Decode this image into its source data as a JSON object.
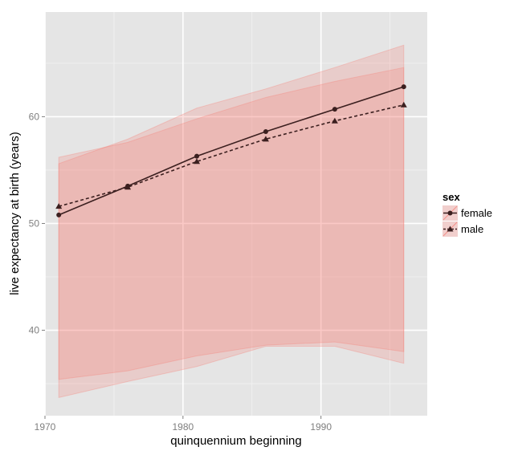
{
  "chart_data": {
    "type": "line",
    "title": "",
    "xlabel": "quinquennium beginning",
    "ylabel": "live expectancy at birth (years)",
    "xlim": [
      1970,
      1997.7
    ],
    "ylim": [
      32,
      69.8
    ],
    "x_ticks": [
      1970,
      1980,
      1990
    ],
    "x_tick_labels": [
      "1970",
      "1980",
      "1990"
    ],
    "y_ticks": [
      40,
      50,
      60
    ],
    "y_tick_labels": [
      "40",
      "50",
      "60"
    ],
    "grid": true,
    "legend": {
      "title": "sex",
      "position": "right"
    },
    "x": [
      1971,
      1976,
      1981,
      1986,
      1991,
      1996
    ],
    "series": [
      {
        "name": "female",
        "values": [
          50.8,
          53.5,
          56.3,
          58.6,
          60.7,
          62.8
        ],
        "lower": [
          33.7,
          35.2,
          36.6,
          38.5,
          38.5,
          36.9
        ],
        "upper": [
          55.6,
          57.9,
          60.8,
          62.6,
          64.6,
          66.7
        ],
        "line_style": "solid",
        "marker": "circle"
      },
      {
        "name": "male",
        "values": [
          51.6,
          53.4,
          55.8,
          57.9,
          59.6,
          61.1
        ],
        "lower": [
          35.4,
          36.2,
          37.6,
          38.6,
          38.9,
          38.0
        ],
        "upper": [
          56.2,
          57.6,
          59.8,
          61.8,
          63.3,
          64.6
        ],
        "line_style": "dashed",
        "marker": "triangle"
      }
    ],
    "colors": {
      "panel": "#e5e5e5",
      "grid_major": "#ffffff",
      "grid_minor": "#f2f2f2",
      "ribbon": "#f8766d",
      "line": "#3b1f1f",
      "text": "#000000",
      "tick_text": "#7f7f7f"
    }
  }
}
